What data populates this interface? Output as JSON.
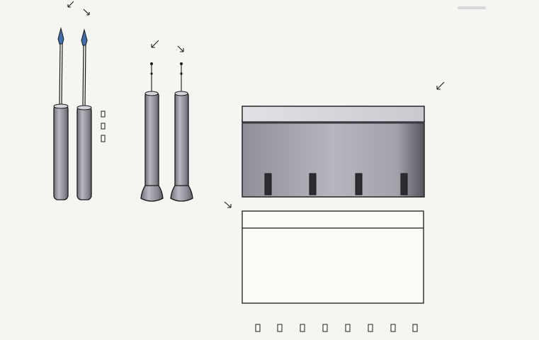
{
  "palette": {
    "paper": "#f6f5f1",
    "ink": "#1a1a1a",
    "handle_grey": "#8e8e96",
    "handle_highlight": "#c4c4ca",
    "blue_tip": "#3f6fae",
    "panel_grey": "#9c9ca6",
    "panel_light": "#cfcfd6"
  },
  "objects": {
    "tools": [
      {
        "name": "needle-probe-left",
        "tip": "blue-tip"
      },
      {
        "name": "needle-probe-right",
        "tip": "blue-tip"
      },
      {
        "name": "flat-base-probe-left",
        "tip": "wire"
      },
      {
        "name": "flat-base-probe-right",
        "tip": "wire"
      }
    ],
    "panels": [
      {
        "name": "shaded-block",
        "slots": 4
      },
      {
        "name": "outlined-block",
        "slots": 0
      }
    ],
    "small_squares_row": 8,
    "small_squares_column": 3
  }
}
